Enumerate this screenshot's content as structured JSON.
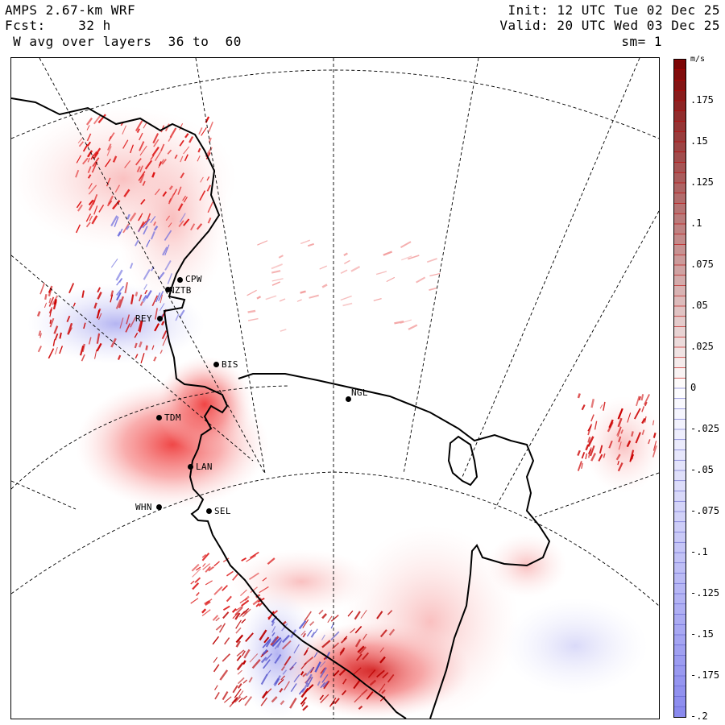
{
  "header": {
    "left_line1": "AMPS 2.67-km WRF",
    "left_line2": "Fcst:    32 h",
    "left_line3": " W avg over layers  36 to  60",
    "right_line1": "Init: 12 UTC Tue 02 Dec 25",
    "right_line2": "Valid: 20 UTC Wed 03 Dec 25",
    "right_line3": "sm= 1"
  },
  "stations": [
    {
      "id": "CPW",
      "label": "CPW"
    },
    {
      "id": "NZTB",
      "label": "NZTB"
    },
    {
      "id": "REY",
      "label": "REY"
    },
    {
      "id": "BIS",
      "label": "BIS"
    },
    {
      "id": "NGL",
      "label": "NGL"
    },
    {
      "id": "TDM",
      "label": "TDM"
    },
    {
      "id": "LAN",
      "label": "LAN"
    },
    {
      "id": "WHN",
      "label": "WHN"
    },
    {
      "id": "SEL",
      "label": "SEL"
    }
  ],
  "colorbar": {
    "units": "m/s",
    "labels": [
      ".175",
      ".15",
      ".125",
      ".1",
      ".075",
      ".05",
      ".025",
      "0",
      "-.025",
      "-.05",
      "-.075",
      "-.1",
      "-.125",
      "-.15",
      "-.175",
      "-.2"
    ],
    "max": 0.2,
    "min": -0.2,
    "pos_color": "#7a0000",
    "neg_color": "#8888ee",
    "zero_color": "#ffffff"
  },
  "colors": {
    "coast": "#000000",
    "grid": "#000000",
    "updraft": "#e41a1c",
    "downdraft": "#7b7bdb"
  }
}
